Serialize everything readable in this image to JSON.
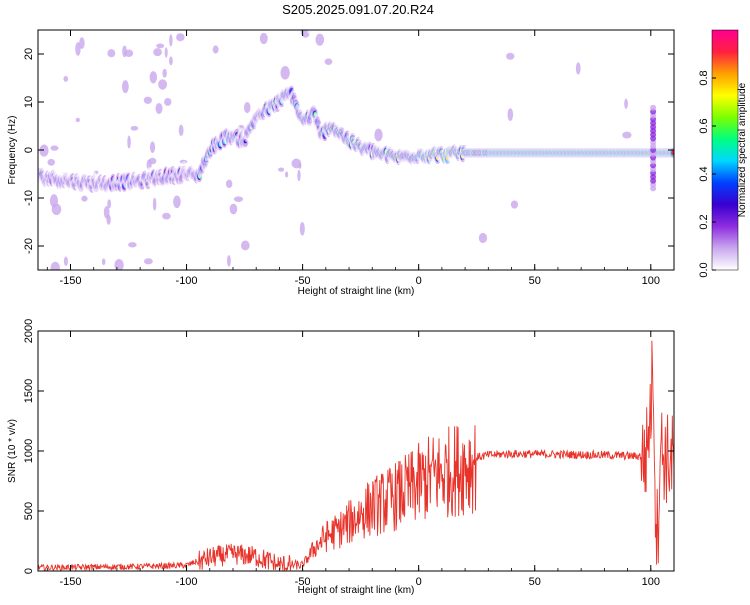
{
  "title": "S205.2025.091.07.20.R24",
  "chart_data": [
    {
      "type": "heatmap",
      "xlabel": "Height of straight line (km)",
      "ylabel": "Frequency (Hz)",
      "xlim": [
        -164,
        110
      ],
      "ylim": [
        -25,
        25
      ],
      "xticks": [
        -150,
        -100,
        -50,
        0,
        50,
        100
      ],
      "yticks": [
        -20,
        -10,
        0,
        10,
        20
      ],
      "colorbar": {
        "label": "Normalized spectral amplitude",
        "range": [
          0,
          1
        ],
        "ticks": [
          0.0,
          0.2,
          0.4,
          0.6,
          0.8
        ],
        "colormap": [
          "#ffffff",
          "#c9a8ee",
          "#8e2de0",
          "#3a00d0",
          "#0040ff",
          "#00d7ff",
          "#00ff80",
          "#7dff00",
          "#ffff00",
          "#ffa000",
          "#ff2040",
          "#ff0090"
        ]
      },
      "ridge": [
        {
          "x": -164,
          "f": -5.5
        },
        {
          "x": -150,
          "f": -6.5
        },
        {
          "x": -140,
          "f": -7
        },
        {
          "x": -120,
          "f": -6.5
        },
        {
          "x": -110,
          "f": -5.5
        },
        {
          "x": -100,
          "f": -5
        },
        {
          "x": -95,
          "f": -5.5
        },
        {
          "x": -92,
          "f": -2
        },
        {
          "x": -88,
          "f": 1
        },
        {
          "x": -82,
          "f": 3
        },
        {
          "x": -75,
          "f": 2
        },
        {
          "x": -70,
          "f": 7
        },
        {
          "x": -63,
          "f": 9
        },
        {
          "x": -55,
          "f": 12
        },
        {
          "x": -50,
          "f": 6
        },
        {
          "x": -45,
          "f": 7.5
        },
        {
          "x": -42,
          "f": 3
        },
        {
          "x": -38,
          "f": 5
        },
        {
          "x": -35,
          "f": 4
        },
        {
          "x": -30,
          "f": 2
        },
        {
          "x": -25,
          "f": 0.5
        },
        {
          "x": -15,
          "f": -1
        },
        {
          "x": -8,
          "f": -1.5
        },
        {
          "x": 0,
          "f": -1
        },
        {
          "x": 10,
          "f": -1
        },
        {
          "x": 20,
          "f": -0.6
        },
        {
          "x": 50,
          "f": -0.6
        },
        {
          "x": 80,
          "f": -0.6
        },
        {
          "x": 97,
          "f": -0.6
        },
        {
          "x": 102,
          "f": -0.6
        },
        {
          "x": 108,
          "f": -0.6
        }
      ]
    },
    {
      "type": "line",
      "xlabel": "Height of straight line (km)",
      "ylabel": "SNR (10 * v/v)",
      "xlim": [
        -164,
        110
      ],
      "ylim": [
        0,
        2000
      ],
      "xticks": [
        -150,
        -100,
        -50,
        0,
        50,
        100
      ],
      "yticks": [
        0,
        500,
        1000,
        1500,
        2000
      ],
      "series_color": "#e8332a",
      "envelope": [
        {
          "x": -164,
          "y": 30
        },
        {
          "x": -120,
          "y": 40
        },
        {
          "x": -100,
          "y": 50
        },
        {
          "x": -90,
          "y": 120
        },
        {
          "x": -80,
          "y": 150
        },
        {
          "x": -70,
          "y": 130
        },
        {
          "x": -60,
          "y": 60
        },
        {
          "x": -50,
          "y": 50
        },
        {
          "x": -45,
          "y": 200
        },
        {
          "x": -40,
          "y": 300
        },
        {
          "x": -35,
          "y": 350
        },
        {
          "x": -30,
          "y": 420
        },
        {
          "x": -25,
          "y": 500
        },
        {
          "x": -20,
          "y": 560
        },
        {
          "x": -15,
          "y": 600
        },
        {
          "x": -10,
          "y": 650
        },
        {
          "x": -5,
          "y": 700
        },
        {
          "x": 0,
          "y": 760
        },
        {
          "x": 5,
          "y": 820
        },
        {
          "x": 10,
          "y": 850
        },
        {
          "x": 15,
          "y": 880
        },
        {
          "x": 20,
          "y": 920
        },
        {
          "x": 25,
          "y": 950
        },
        {
          "x": 30,
          "y": 970
        },
        {
          "x": 40,
          "y": 980
        },
        {
          "x": 60,
          "y": 975
        },
        {
          "x": 80,
          "y": 970
        },
        {
          "x": 95,
          "y": 960
        },
        {
          "x": 98,
          "y": 1000
        },
        {
          "x": 100,
          "y": 1400
        },
        {
          "x": 101,
          "y": 1800
        },
        {
          "x": 102,
          "y": 600
        },
        {
          "x": 103,
          "y": 300
        },
        {
          "x": 104,
          "y": 1100
        },
        {
          "x": 106,
          "y": 980
        },
        {
          "x": 110,
          "y": 960
        }
      ]
    }
  ]
}
